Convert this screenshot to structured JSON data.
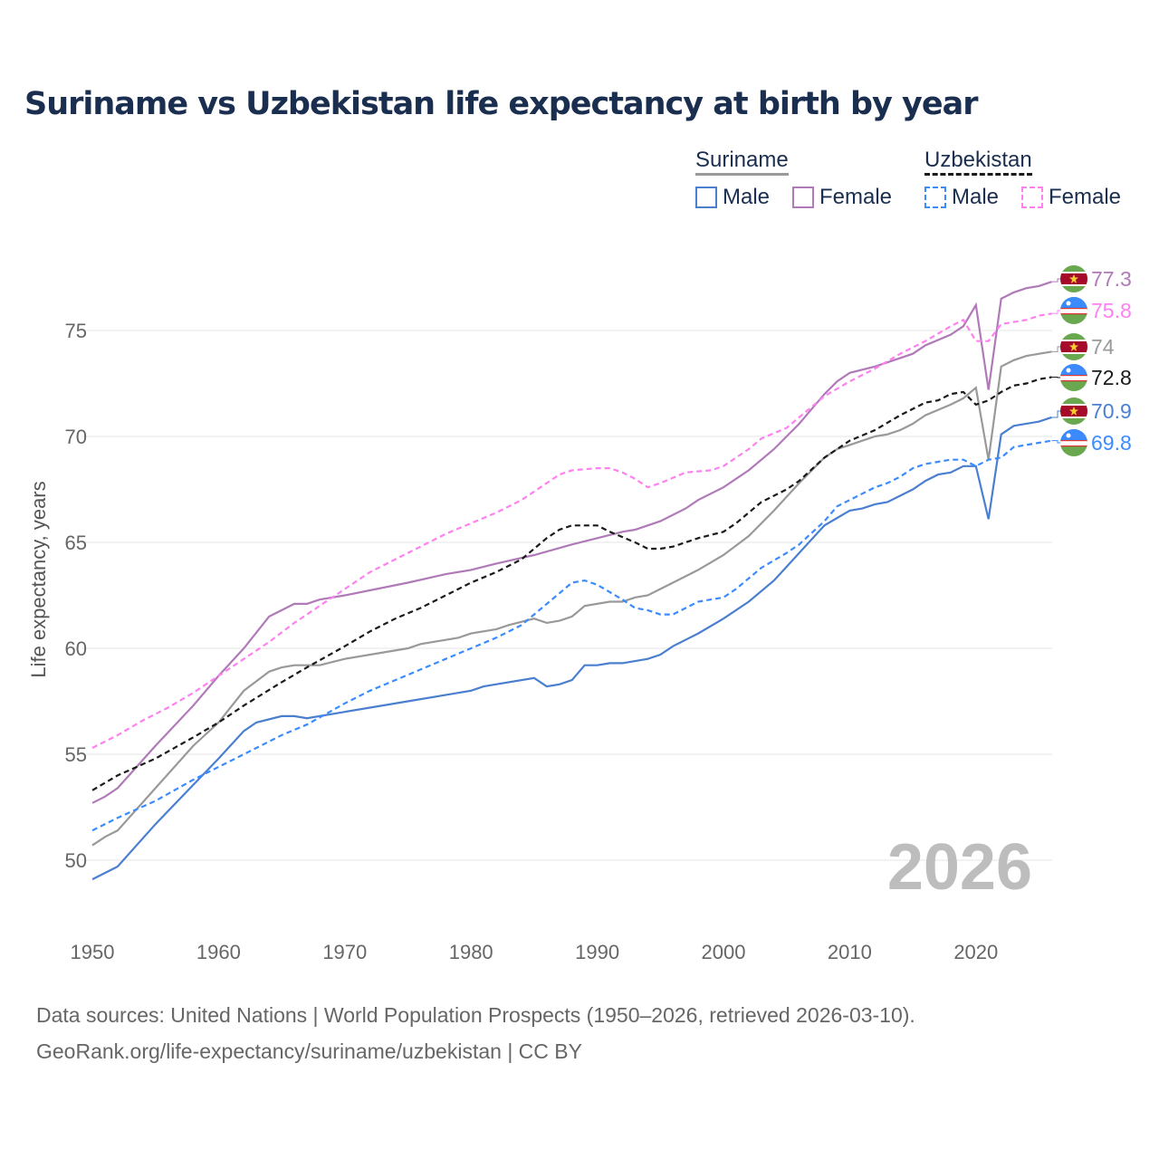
{
  "title": "Suriname vs Uzbekistan life expectancy at birth by year",
  "legend": {
    "groups": [
      {
        "name": "Suriname",
        "items": [
          "Male",
          "Female"
        ]
      },
      {
        "name": "Uzbekistan",
        "items": [
          "Male",
          "Female"
        ]
      }
    ]
  },
  "footer": {
    "line1": "Data sources: United Nations | World Population Prospects (1950–2026, retrieved 2026-03-10).",
    "line2": "GeoRank.org/life-expectancy/suriname/uzbekistan | CC BY"
  },
  "chart_data": {
    "type": "line",
    "title": "Suriname vs Uzbekistan life expectancy at birth by year",
    "xlabel": "",
    "ylabel": "Life expectancy, years",
    "xlim": [
      1950,
      2026
    ],
    "ylim": [
      47.5,
      78.5
    ],
    "xticks": [
      1950,
      1960,
      1970,
      1980,
      1990,
      2000,
      2010,
      2020
    ],
    "yticks": [
      50,
      55,
      60,
      65,
      70,
      75
    ],
    "grid": true,
    "annotation": "2026",
    "series": [
      {
        "name": "Suriname Female",
        "country": "Suriname",
        "color": "#b07ab8",
        "dash": false,
        "end_label": "77.3",
        "points": [
          [
            1950,
            52.7
          ],
          [
            1951,
            53
          ],
          [
            1952,
            53.4
          ],
          [
            1955,
            55.4
          ],
          [
            1958,
            57.3
          ],
          [
            1960,
            58.7
          ],
          [
            1962,
            60
          ],
          [
            1964,
            61.5
          ],
          [
            1966,
            62.1
          ],
          [
            1967,
            62.1
          ],
          [
            1968,
            62.3
          ],
          [
            1970,
            62.5
          ],
          [
            1975,
            63.1
          ],
          [
            1978,
            63.5
          ],
          [
            1980,
            63.7
          ],
          [
            1982,
            64
          ],
          [
            1985,
            64.4
          ],
          [
            1988,
            64.9
          ],
          [
            1990,
            65.2
          ],
          [
            1992,
            65.5
          ],
          [
            1993,
            65.6
          ],
          [
            1995,
            66
          ],
          [
            1997,
            66.6
          ],
          [
            1998,
            67
          ],
          [
            2000,
            67.6
          ],
          [
            2002,
            68.4
          ],
          [
            2004,
            69.4
          ],
          [
            2006,
            70.6
          ],
          [
            2008,
            72
          ],
          [
            2009,
            72.6
          ],
          [
            2010,
            73
          ],
          [
            2012,
            73.3
          ],
          [
            2014,
            73.7
          ],
          [
            2015,
            73.9
          ],
          [
            2016,
            74.3
          ],
          [
            2018,
            74.8
          ],
          [
            2019,
            75.2
          ],
          [
            2020,
            76.2
          ],
          [
            2021,
            72.2
          ],
          [
            2022,
            76.5
          ],
          [
            2023,
            76.8
          ],
          [
            2024,
            77
          ],
          [
            2025,
            77.1
          ],
          [
            2026,
            77.3
          ]
        ]
      },
      {
        "name": "Uzbekistan Female",
        "country": "Uzbekistan",
        "color": "#ff80f0",
        "dash": true,
        "end_label": "75.8",
        "points": [
          [
            1950,
            55.3
          ],
          [
            1952,
            55.9
          ],
          [
            1954,
            56.6
          ],
          [
            1956,
            57.2
          ],
          [
            1958,
            57.9
          ],
          [
            1960,
            58.7
          ],
          [
            1962,
            59.5
          ],
          [
            1964,
            60.3
          ],
          [
            1966,
            61.2
          ],
          [
            1968,
            62
          ],
          [
            1970,
            62.8
          ],
          [
            1972,
            63.6
          ],
          [
            1974,
            64.2
          ],
          [
            1976,
            64.8
          ],
          [
            1978,
            65.4
          ],
          [
            1980,
            65.9
          ],
          [
            1982,
            66.4
          ],
          [
            1984,
            67
          ],
          [
            1986,
            67.8
          ],
          [
            1987,
            68.2
          ],
          [
            1988,
            68.4
          ],
          [
            1990,
            68.5
          ],
          [
            1991,
            68.5
          ],
          [
            1992,
            68.3
          ],
          [
            1993,
            68
          ],
          [
            1994,
            67.6
          ],
          [
            1995,
            67.8
          ],
          [
            1997,
            68.3
          ],
          [
            1999,
            68.4
          ],
          [
            2000,
            68.6
          ],
          [
            2002,
            69.4
          ],
          [
            2003,
            69.9
          ],
          [
            2005,
            70.4
          ],
          [
            2006,
            70.9
          ],
          [
            2008,
            71.9
          ],
          [
            2010,
            72.6
          ],
          [
            2012,
            73.2
          ],
          [
            2014,
            73.9
          ],
          [
            2016,
            74.5
          ],
          [
            2018,
            75.2
          ],
          [
            2019,
            75.5
          ],
          [
            2020,
            74.5
          ],
          [
            2021,
            74.5
          ],
          [
            2022,
            75.3
          ],
          [
            2023,
            75.4
          ],
          [
            2024,
            75.5
          ],
          [
            2025,
            75.7
          ],
          [
            2026,
            75.8
          ]
        ]
      },
      {
        "name": "Suriname",
        "country": "Suriname",
        "color": "#999999",
        "dash": false,
        "end_label": "74",
        "points": [
          [
            1950,
            50.7
          ],
          [
            1951,
            51.1
          ],
          [
            1952,
            51.4
          ],
          [
            1955,
            53.4
          ],
          [
            1958,
            55.4
          ],
          [
            1960,
            56.5
          ],
          [
            1962,
            58
          ],
          [
            1964,
            58.9
          ],
          [
            1965,
            59.1
          ],
          [
            1966,
            59.2
          ],
          [
            1968,
            59.2
          ],
          [
            1970,
            59.5
          ],
          [
            1975,
            60
          ],
          [
            1976,
            60.2
          ],
          [
            1979,
            60.5
          ],
          [
            1980,
            60.7
          ],
          [
            1982,
            60.9
          ],
          [
            1983,
            61.1
          ],
          [
            1985,
            61.4
          ],
          [
            1986,
            61.2
          ],
          [
            1987,
            61.3
          ],
          [
            1988,
            61.5
          ],
          [
            1989,
            62
          ],
          [
            1991,
            62.2
          ],
          [
            1992,
            62.2
          ],
          [
            1993,
            62.4
          ],
          [
            1994,
            62.5
          ],
          [
            1996,
            63.1
          ],
          [
            1998,
            63.7
          ],
          [
            2000,
            64.4
          ],
          [
            2002,
            65.3
          ],
          [
            2004,
            66.5
          ],
          [
            2006,
            67.8
          ],
          [
            2008,
            69
          ],
          [
            2009,
            69.4
          ],
          [
            2010,
            69.6
          ],
          [
            2012,
            70
          ],
          [
            2013,
            70.1
          ],
          [
            2014,
            70.3
          ],
          [
            2015,
            70.6
          ],
          [
            2016,
            71
          ],
          [
            2018,
            71.5
          ],
          [
            2019,
            71.8
          ],
          [
            2020,
            72.3
          ],
          [
            2021,
            68.9
          ],
          [
            2022,
            73.3
          ],
          [
            2023,
            73.6
          ],
          [
            2024,
            73.8
          ],
          [
            2025,
            73.9
          ],
          [
            2026,
            74
          ]
        ]
      },
      {
        "name": "Uzbekistan",
        "country": "Uzbekistan",
        "color": "#1a1a1a",
        "dash": true,
        "end_label": "72.8",
        "points": [
          [
            1950,
            53.3
          ],
          [
            1952,
            54
          ],
          [
            1955,
            54.8
          ],
          [
            1958,
            55.8
          ],
          [
            1960,
            56.5
          ],
          [
            1962,
            57.3
          ],
          [
            1965,
            58.4
          ],
          [
            1967,
            59.1
          ],
          [
            1970,
            60.1
          ],
          [
            1972,
            60.8
          ],
          [
            1974,
            61.4
          ],
          [
            1976,
            61.9
          ],
          [
            1978,
            62.5
          ],
          [
            1980,
            63.1
          ],
          [
            1982,
            63.6
          ],
          [
            1984,
            64.2
          ],
          [
            1986,
            65.2
          ],
          [
            1987,
            65.6
          ],
          [
            1988,
            65.8
          ],
          [
            1990,
            65.8
          ],
          [
            1991,
            65.5
          ],
          [
            1993,
            65
          ],
          [
            1994,
            64.7
          ],
          [
            1995,
            64.7
          ],
          [
            1996,
            64.8
          ],
          [
            1998,
            65.2
          ],
          [
            2000,
            65.5
          ],
          [
            2001,
            65.9
          ],
          [
            2003,
            66.9
          ],
          [
            2005,
            67.5
          ],
          [
            2006,
            67.9
          ],
          [
            2008,
            69
          ],
          [
            2010,
            69.8
          ],
          [
            2012,
            70.3
          ],
          [
            2014,
            71
          ],
          [
            2016,
            71.6
          ],
          [
            2017,
            71.7
          ],
          [
            2018,
            72
          ],
          [
            2019,
            72.1
          ],
          [
            2020,
            71.5
          ],
          [
            2021,
            71.7
          ],
          [
            2022,
            72.1
          ],
          [
            2023,
            72.4
          ],
          [
            2024,
            72.5
          ],
          [
            2025,
            72.7
          ],
          [
            2026,
            72.8
          ]
        ]
      },
      {
        "name": "Suriname Male",
        "country": "Suriname",
        "color": "#4a7fd0",
        "dash": false,
        "end_label": "70.9",
        "points": [
          [
            1950,
            49.1
          ],
          [
            1952,
            49.7
          ],
          [
            1955,
            51.7
          ],
          [
            1960,
            54.8
          ],
          [
            1962,
            56.1
          ],
          [
            1963,
            56.5
          ],
          [
            1965,
            56.8
          ],
          [
            1966,
            56.8
          ],
          [
            1967,
            56.7
          ],
          [
            1970,
            57
          ],
          [
            1975,
            57.5
          ],
          [
            1980,
            58
          ],
          [
            1981,
            58.2
          ],
          [
            1985,
            58.6
          ],
          [
            1986,
            58.2
          ],
          [
            1987,
            58.3
          ],
          [
            1988,
            58.5
          ],
          [
            1989,
            59.2
          ],
          [
            1990,
            59.2
          ],
          [
            1991,
            59.3
          ],
          [
            1992,
            59.3
          ],
          [
            1994,
            59.5
          ],
          [
            1995,
            59.7
          ],
          [
            1996,
            60.1
          ],
          [
            1998,
            60.7
          ],
          [
            2000,
            61.4
          ],
          [
            2002,
            62.2
          ],
          [
            2004,
            63.2
          ],
          [
            2006,
            64.5
          ],
          [
            2008,
            65.8
          ],
          [
            2010,
            66.5
          ],
          [
            2011,
            66.6
          ],
          [
            2012,
            66.8
          ],
          [
            2013,
            66.9
          ],
          [
            2015,
            67.5
          ],
          [
            2016,
            67.9
          ],
          [
            2017,
            68.2
          ],
          [
            2018,
            68.3
          ],
          [
            2019,
            68.6
          ],
          [
            2020,
            68.6
          ],
          [
            2021,
            66.1
          ],
          [
            2022,
            70.1
          ],
          [
            2023,
            70.5
          ],
          [
            2025,
            70.7
          ],
          [
            2026,
            70.9
          ]
        ]
      },
      {
        "name": "Uzbekistan Male",
        "country": "Uzbekistan",
        "color": "#3b8bff",
        "dash": true,
        "end_label": "69.8",
        "points": [
          [
            1950,
            51.4
          ],
          [
            1952,
            52
          ],
          [
            1955,
            52.8
          ],
          [
            1958,
            53.8
          ],
          [
            1960,
            54.4
          ],
          [
            1963,
            55.3
          ],
          [
            1965,
            55.9
          ],
          [
            1967,
            56.4
          ],
          [
            1970,
            57.4
          ],
          [
            1972,
            58
          ],
          [
            1974,
            58.5
          ],
          [
            1976,
            59
          ],
          [
            1978,
            59.5
          ],
          [
            1980,
            60
          ],
          [
            1982,
            60.5
          ],
          [
            1984,
            61.1
          ],
          [
            1985,
            61.6
          ],
          [
            1987,
            62.6
          ],
          [
            1988,
            63.1
          ],
          [
            1989,
            63.2
          ],
          [
            1990,
            63
          ],
          [
            1992,
            62.3
          ],
          [
            1993,
            61.9
          ],
          [
            1994,
            61.8
          ],
          [
            1995,
            61.6
          ],
          [
            1996,
            61.6
          ],
          [
            1998,
            62.2
          ],
          [
            2000,
            62.4
          ],
          [
            2001,
            62.8
          ],
          [
            2003,
            63.8
          ],
          [
            2005,
            64.5
          ],
          [
            2006,
            64.9
          ],
          [
            2008,
            66
          ],
          [
            2009,
            66.7
          ],
          [
            2011,
            67.3
          ],
          [
            2012,
            67.6
          ],
          [
            2013,
            67.8
          ],
          [
            2014,
            68.1
          ],
          [
            2015,
            68.5
          ],
          [
            2016,
            68.7
          ],
          [
            2018,
            68.9
          ],
          [
            2019,
            68.9
          ],
          [
            2020,
            68.6
          ],
          [
            2021,
            68.9
          ],
          [
            2022,
            69
          ],
          [
            2023,
            69.5
          ],
          [
            2025,
            69.7
          ],
          [
            2026,
            69.8
          ]
        ]
      }
    ]
  }
}
